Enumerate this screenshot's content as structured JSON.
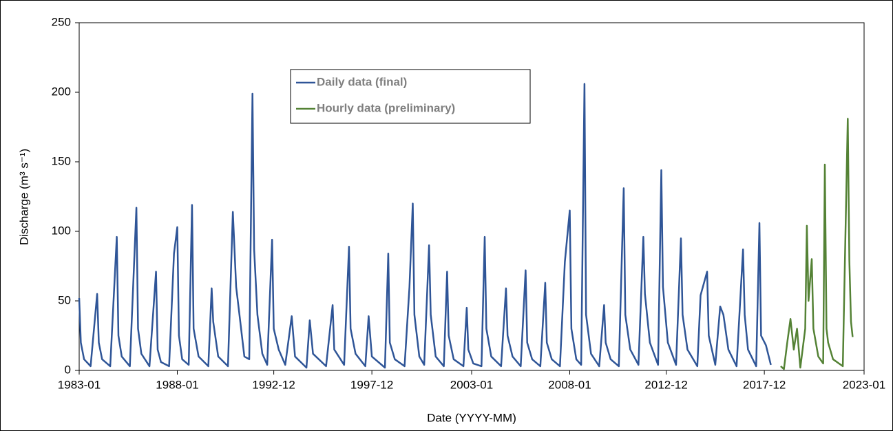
{
  "chart_data": {
    "type": "line",
    "x_label": "Date (YYYY-MM)",
    "y_label": "Discharge (m³ s⁻¹)",
    "xlim": [
      "1983-01",
      "2023-01"
    ],
    "xticks": [
      "1983-01",
      "1988-01",
      "1992-12",
      "1997-12",
      "2003-01",
      "2008-01",
      "2012-12",
      "2017-12",
      "2023-01"
    ],
    "ylim": [
      0,
      250
    ],
    "yticks": [
      0,
      50,
      100,
      150,
      200,
      250
    ],
    "legend": "upper-center",
    "series": [
      {
        "name": "Daily data (final)",
        "color": "#2f5597",
        "x": [
          "1983-01",
          "1983-02",
          "1983-04",
          "1983-08",
          "1983-12",
          "1984-01",
          "1984-03",
          "1984-08",
          "1984-12",
          "1985-01",
          "1985-03",
          "1985-08",
          "1985-12",
          "1986-01",
          "1986-03",
          "1986-08",
          "1986-12",
          "1987-01",
          "1987-03",
          "1987-08",
          "1987-11",
          "1988-01",
          "1988-02",
          "1988-04",
          "1988-08",
          "1988-10",
          "1988-11",
          "1989-02",
          "1989-08",
          "1989-10",
          "1989-11",
          "1990-02",
          "1990-08",
          "1990-11",
          "1991-01",
          "1991-03",
          "1991-06",
          "1991-09",
          "1991-11",
          "1991-12",
          "1992-02",
          "1992-05",
          "1992-08",
          "1992-11",
          "1992-12",
          "1993-03",
          "1993-07",
          "1993-11",
          "1994-01",
          "1994-08",
          "1994-10",
          "1994-12",
          "1995-08",
          "1995-12",
          "1996-01",
          "1996-07",
          "1996-10",
          "1996-11",
          "1997-02",
          "1997-08",
          "1997-10",
          "1997-12",
          "1998-08",
          "1998-10",
          "1998-11",
          "1999-02",
          "1999-08",
          "1999-11",
          "2000-01",
          "2000-02",
          "2000-05",
          "2000-08",
          "2000-11",
          "2000-12",
          "2001-03",
          "2001-08",
          "2001-10",
          "2001-11",
          "2002-02",
          "2002-08",
          "2002-10",
          "2002-11",
          "2003-02",
          "2003-07",
          "2003-09",
          "2003-10",
          "2004-01",
          "2004-07",
          "2004-10",
          "2004-11",
          "2005-02",
          "2005-07",
          "2005-10",
          "2005-11",
          "2006-02",
          "2006-07",
          "2006-10",
          "2006-11",
          "2007-02",
          "2007-07",
          "2007-10",
          "2008-01",
          "2008-02",
          "2008-05",
          "2008-08",
          "2008-10",
          "2008-11",
          "2009-02",
          "2009-07",
          "2009-10",
          "2009-11",
          "2010-02",
          "2010-07",
          "2010-10",
          "2010-11",
          "2011-02",
          "2011-07",
          "2011-10",
          "2011-11",
          "2012-02",
          "2012-07",
          "2012-09",
          "2012-10",
          "2013-01",
          "2013-06",
          "2013-09",
          "2013-10",
          "2014-01",
          "2014-07",
          "2014-09",
          "2015-01",
          "2015-02",
          "2015-06",
          "2015-09",
          "2015-11",
          "2016-02",
          "2016-07",
          "2016-11",
          "2016-12",
          "2017-02",
          "2017-07",
          "2017-09",
          "2017-10",
          "2018-01",
          "2018-04"
        ],
        "values": [
          52,
          20,
          8,
          3,
          55,
          20,
          8,
          3,
          96,
          25,
          10,
          3,
          117,
          30,
          12,
          3,
          71,
          15,
          6,
          3,
          84,
          103,
          25,
          8,
          4,
          119,
          30,
          10,
          3,
          59,
          35,
          10,
          3,
          114,
          60,
          40,
          10,
          8,
          199,
          87,
          40,
          12,
          4,
          94,
          30,
          15,
          4,
          39,
          10,
          2,
          36,
          12,
          3,
          47,
          15,
          4,
          89,
          30,
          12,
          3,
          39,
          10,
          2,
          84,
          20,
          8,
          3,
          60,
          120,
          40,
          10,
          4,
          90,
          40,
          10,
          3,
          71,
          25,
          8,
          3,
          45,
          15,
          5,
          3,
          96,
          30,
          10,
          3,
          59,
          25,
          10,
          3,
          72,
          20,
          8,
          3,
          63,
          20,
          8,
          3,
          78,
          115,
          30,
          8,
          4,
          206,
          40,
          12,
          3,
          47,
          20,
          8,
          3,
          131,
          40,
          15,
          4,
          96,
          55,
          20,
          4,
          144,
          60,
          20,
          4,
          95,
          40,
          15,
          3,
          54,
          71,
          25,
          4,
          46,
          40,
          15,
          3,
          87,
          40,
          15,
          3,
          106,
          25,
          18,
          4
        ]
      },
      {
        "name": "Hourly data (preliminary)",
        "color": "#548235",
        "x": [
          "2018-10",
          "2018-12",
          "2019-02",
          "2019-04",
          "2019-06",
          "2019-08",
          "2019-10",
          "2020-01",
          "2020-02",
          "2020-03",
          "2020-05",
          "2020-06",
          "2020-09",
          "2020-12",
          "2021-01",
          "2021-02",
          "2021-03",
          "2021-06",
          "2021-12",
          "2022-03",
          "2022-04",
          "2022-05",
          "2022-06"
        ],
        "values": [
          3,
          1,
          20,
          37,
          15,
          30,
          2,
          30,
          104,
          50,
          80,
          30,
          10,
          5,
          148,
          30,
          20,
          8,
          3,
          181,
          79,
          35,
          24
        ]
      }
    ]
  }
}
